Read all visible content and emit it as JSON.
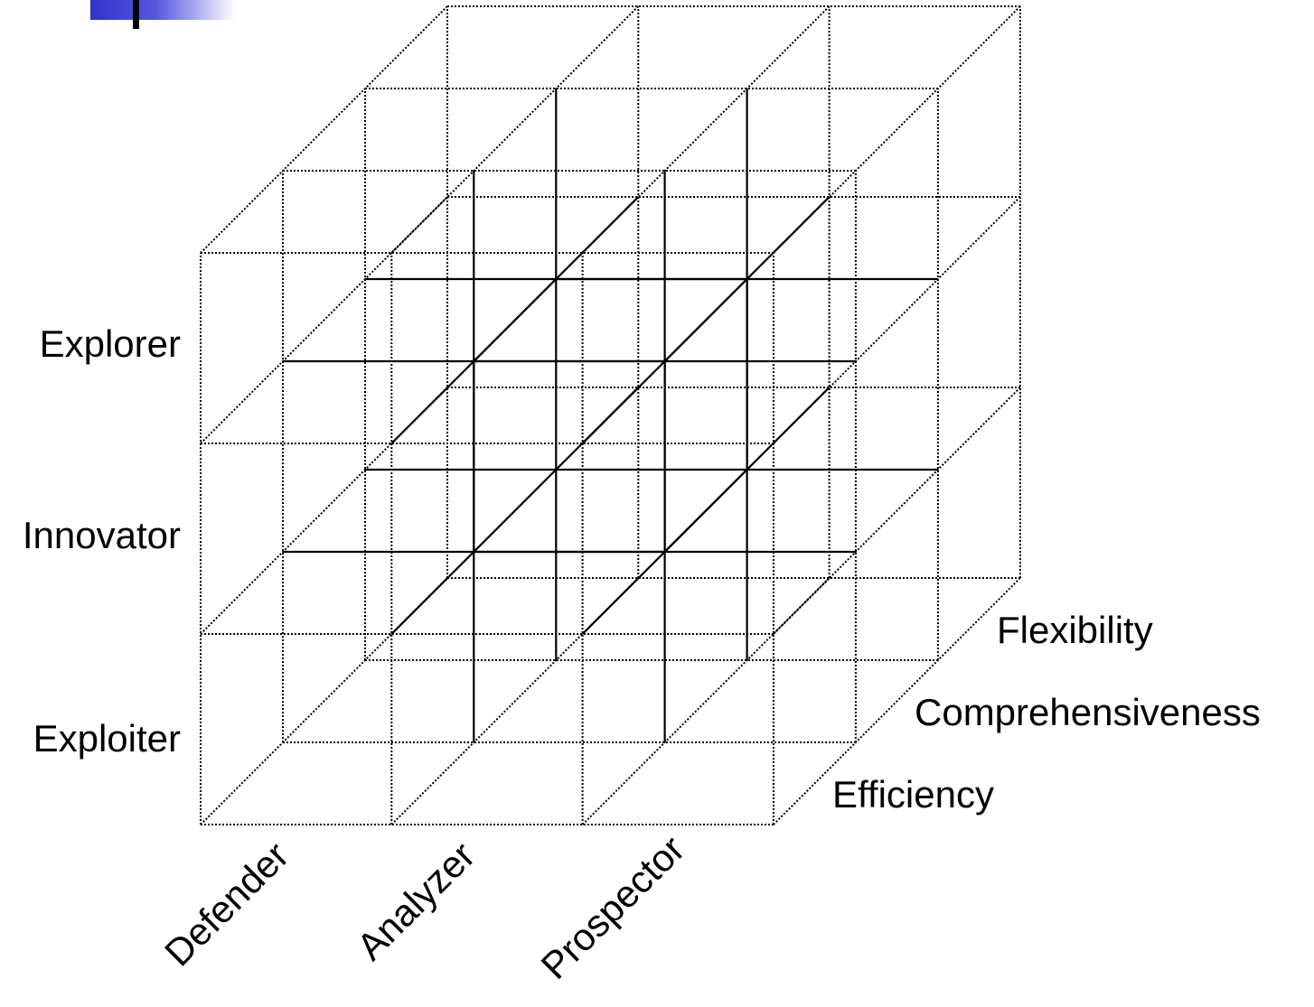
{
  "diagram": {
    "type": "3d-grid-cube",
    "grid_size": [
      3,
      3,
      3
    ],
    "colors": {
      "line": "#000000",
      "background": "#ffffff",
      "decor_bar": "#3333cc"
    },
    "row_labels": [
      "Explorer",
      "Innovator",
      "Exploiter"
    ],
    "column_labels": [
      "Defender",
      "Analyzer",
      "Prospector"
    ],
    "depth_labels": [
      "Flexibility",
      "Comprehensiveness",
      "Efficiency"
    ],
    "highlighted_cell": {
      "row": "Innovator",
      "column": "Analyzer",
      "depth": "Comprehensiveness"
    }
  }
}
